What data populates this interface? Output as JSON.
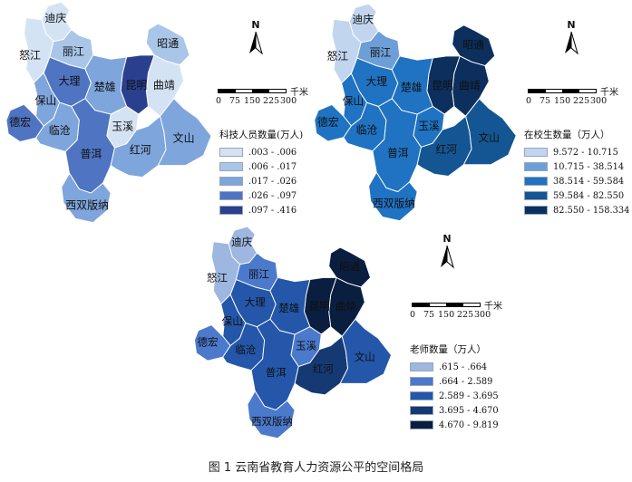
{
  "caption": "图 1  云南省教育人力资源公平的空间格局",
  "region_names": {
    "diqing": "迪庆",
    "nujiang": "怒江",
    "lijiang": "丽江",
    "zhaotong": "昭通",
    "qujing": "曲靖",
    "kunming": "昆明",
    "dali": "大理",
    "chuxiong": "楚雄",
    "baoshan": "保山",
    "dehong": "德宏",
    "lincang": "临沧",
    "yuxi": "玉溪",
    "puer": "普洱",
    "honghe": "红河",
    "wenshan": "文山",
    "xishuangbanna": "西双版纳"
  },
  "compass": {
    "letter": "N"
  },
  "scale": {
    "unit": "千米",
    "ticks": [
      "0",
      "75",
      "150",
      "225",
      "300"
    ]
  },
  "maps": [
    {
      "id": "sci_tech",
      "legend_title": "科技人员数量(万人)",
      "classes": [
        {
          "label": ".003 - .006",
          "color": "#d4e3f4"
        },
        {
          "label": ".006 - .017",
          "color": "#a9c6e9"
        },
        {
          "label": ".017 - .026",
          "color": "#7ea5dc"
        },
        {
          "label": ".026 - .097",
          "color": "#4f74c1"
        },
        {
          "label": ".097 - .416",
          "color": "#2b3f8f"
        }
      ],
      "values": {
        "diqing": 0,
        "nujiang": 0,
        "lijiang": 1,
        "zhaotong": 1,
        "qujing": 0,
        "kunming": 4,
        "dali": 3,
        "chuxiong": 2,
        "baoshan": 2,
        "dehong": 3,
        "lincang": 2,
        "yuxi": 0,
        "puer": 3,
        "honghe": 2,
        "wenshan": 2,
        "xishuangbanna": 2
      }
    },
    {
      "id": "students",
      "legend_title": "在校生数量（万人）",
      "classes": [
        {
          "label": "9.572 - 10.715",
          "color": "#c2d5ee"
        },
        {
          "label": "10.715 - 38.514",
          "color": "#6d9ed8"
        },
        {
          "label": "38.514 - 59.584",
          "color": "#1f73c2"
        },
        {
          "label": "59.584 - 82.550",
          "color": "#145694"
        },
        {
          "label": "82.550 - 158.334",
          "color": "#0c2f5e"
        }
      ],
      "values": {
        "diqing": 0,
        "nujiang": 0,
        "lijiang": 1,
        "zhaotong": 4,
        "qujing": 4,
        "kunming": 4,
        "dali": 2,
        "chuxiong": 2,
        "baoshan": 2,
        "dehong": 2,
        "lincang": 2,
        "yuxi": 2,
        "puer": 2,
        "honghe": 3,
        "wenshan": 3,
        "xishuangbanna": 2
      }
    },
    {
      "id": "teachers",
      "legend_title": "老师数量（万人）",
      "classes": [
        {
          "label": ".615 - .664",
          "color": "#9db7e0"
        },
        {
          "label": ".664 - 2.589",
          "color": "#4b79cc"
        },
        {
          "label": "2.589 - 3.695",
          "color": "#2457aa"
        },
        {
          "label": "3.695 - 4.670",
          "color": "#153a73"
        },
        {
          "label": "4.670 - 9.819",
          "color": "#0a1e40"
        }
      ],
      "values": {
        "diqing": 0,
        "nujiang": 0,
        "lijiang": 1,
        "zhaotong": 4,
        "qujing": 4,
        "kunming": 4,
        "dali": 2,
        "chuxiong": 2,
        "baoshan": 2,
        "dehong": 1,
        "lincang": 2,
        "yuxi": 1,
        "puer": 2,
        "honghe": 3,
        "wenshan": 2,
        "xishuangbanna": 1
      }
    }
  ]
}
